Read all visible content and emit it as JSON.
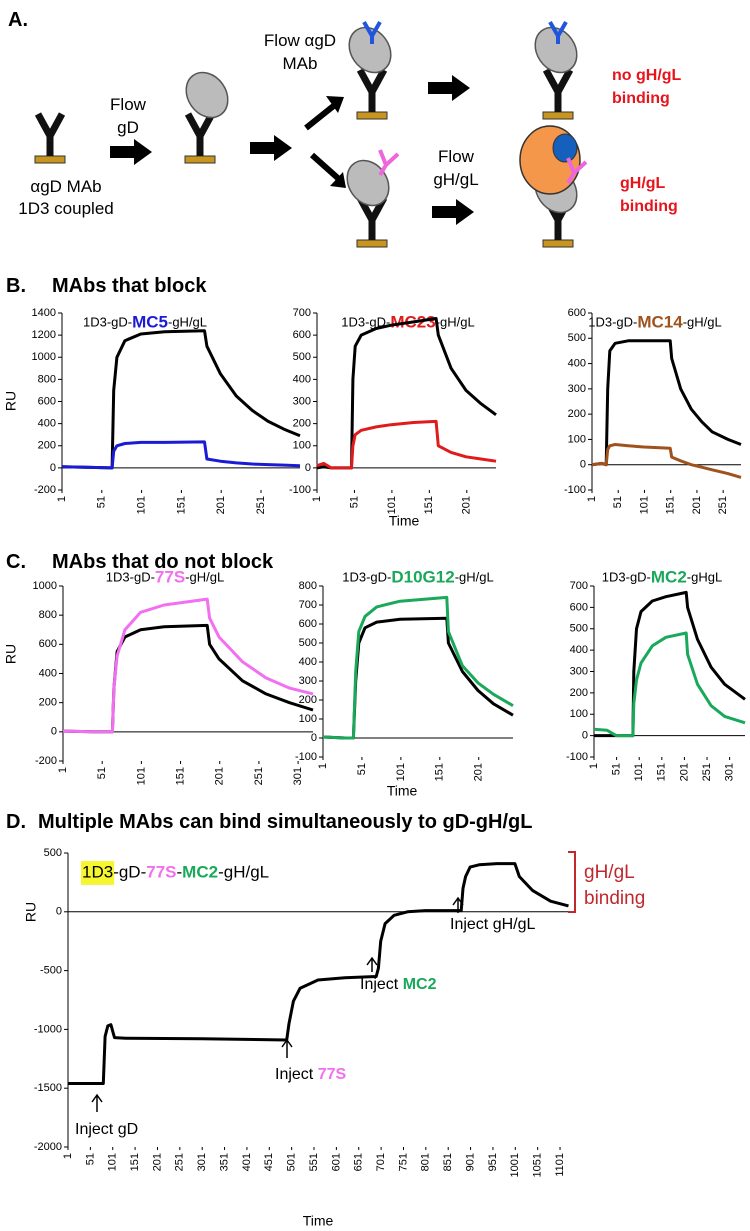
{
  "diagram": {
    "label": "A.",
    "flow_gd": [
      "Flow",
      "gD"
    ],
    "flow_mab": [
      "Flow αgD",
      "MAb"
    ],
    "coupled": [
      "αgD MAb",
      "1D3 coupled"
    ],
    "flow_ghgl": [
      "Flow",
      "gH/gL"
    ],
    "no_binding": [
      "no gH/gL",
      "binding"
    ],
    "binding": [
      "gH/gL",
      "binding"
    ]
  },
  "sections": [
    {
      "label": "B.",
      "title": "MAbs that block"
    },
    {
      "label": "C.",
      "title": "MAbs that do not block"
    },
    {
      "label": "D.",
      "title": "Multiple MAbs can bind simultaneously to gD-gH/gL"
    }
  ],
  "chart_data": [
    {
      "type": "line",
      "title": [
        {
          "text": "1D3-gD-"
        },
        {
          "text": "MC5",
          "color": "#1b1bd6"
        },
        {
          "text": "-gH/gL"
        }
      ],
      "ylabel": "RU",
      "x": [
        1,
        30,
        64,
        66,
        70,
        80,
        100,
        130,
        180,
        183,
        200,
        220,
        240,
        260,
        280,
        300
      ],
      "series": [
        {
          "color": "#000000",
          "values": [
            10,
            5,
            0,
            700,
            1000,
            1150,
            1210,
            1230,
            1240,
            1100,
            850,
            650,
            520,
            420,
            350,
            290
          ]
        },
        {
          "color": "#1b1bd6",
          "values": [
            10,
            5,
            0,
            150,
            200,
            220,
            230,
            230,
            235,
            80,
            60,
            45,
            35,
            30,
            25,
            20
          ]
        }
      ],
      "xlim": [
        1,
        300
      ],
      "xticks": [
        1,
        51,
        101,
        151,
        201,
        251
      ],
      "ylim": [
        -200,
        1400
      ],
      "yticks": [
        -200,
        0,
        200,
        400,
        600,
        800,
        1000,
        1200,
        1400
      ]
    },
    {
      "type": "line",
      "title": [
        {
          "text": "1D3-gD-"
        },
        {
          "text": "MC23",
          "color": "#e01b1b"
        },
        {
          "text": "-gH/gL"
        }
      ],
      "xlabel": "Time",
      "x": [
        1,
        10,
        20,
        47,
        49,
        52,
        60,
        80,
        100,
        130,
        160,
        163,
        180,
        200,
        220,
        240
      ],
      "series": [
        {
          "color": "#000000",
          "values": [
            0,
            5,
            0,
            0,
            400,
            550,
            600,
            630,
            645,
            660,
            675,
            600,
            450,
            350,
            290,
            240
          ]
        },
        {
          "color": "#e01b1b",
          "values": [
            10,
            20,
            0,
            0,
            100,
            150,
            170,
            185,
            195,
            205,
            210,
            100,
            70,
            50,
            40,
            30
          ]
        }
      ],
      "xlim": [
        1,
        240
      ],
      "xticks": [
        1,
        51,
        101,
        151,
        201
      ],
      "ylim": [
        -100,
        700
      ],
      "yticks": [
        -100,
        0,
        100,
        200,
        300,
        400,
        500,
        600,
        700
      ]
    },
    {
      "type": "line",
      "title": [
        {
          "text": "1D3-gD-"
        },
        {
          "text": "MC14",
          "color": "#a0521c"
        },
        {
          "text": "-gH/gL"
        }
      ],
      "x": [
        1,
        20,
        28,
        31,
        35,
        45,
        70,
        100,
        150,
        153,
        170,
        190,
        210,
        230,
        260,
        285
      ],
      "series": [
        {
          "color": "#000000",
          "values": [
            0,
            5,
            0,
            300,
            450,
            480,
            490,
            490,
            490,
            420,
            300,
            220,
            170,
            130,
            100,
            80
          ]
        },
        {
          "color": "#a0521c",
          "values": [
            0,
            5,
            0,
            60,
            75,
            80,
            75,
            70,
            65,
            30,
            15,
            0,
            -10,
            -20,
            -35,
            -50
          ]
        }
      ],
      "xlim": [
        1,
        285
      ],
      "xticks": [
        1,
        51,
        101,
        151,
        201,
        251
      ],
      "ylim": [
        -100,
        600
      ],
      "yticks": [
        -100,
        0,
        100,
        200,
        300,
        400,
        500,
        600
      ]
    },
    {
      "type": "line",
      "title": [
        {
          "text": "1D3-gD-"
        },
        {
          "text": "77S",
          "color": "#f26ff0"
        },
        {
          "text": "-gH/gL"
        }
      ],
      "ylabel": "RU",
      "x": [
        1,
        40,
        64,
        66,
        70,
        80,
        100,
        130,
        185,
        188,
        200,
        230,
        260,
        290,
        320
      ],
      "series": [
        {
          "color": "#000000",
          "values": [
            5,
            0,
            0,
            300,
            550,
            650,
            700,
            720,
            730,
            600,
            500,
            350,
            260,
            200,
            150
          ]
        },
        {
          "color": "#f26ff0",
          "values": [
            5,
            0,
            0,
            300,
            520,
            700,
            820,
            870,
            910,
            780,
            650,
            480,
            370,
            300,
            260
          ]
        }
      ],
      "xlim": [
        1,
        320
      ],
      "xticks": [
        1,
        51,
        101,
        151,
        201,
        251,
        301
      ],
      "ylim": [
        -200,
        1000
      ],
      "yticks": [
        -200,
        0,
        200,
        400,
        600,
        800,
        1000
      ]
    },
    {
      "type": "line",
      "title": [
        {
          "text": "1D3-gD-"
        },
        {
          "text": "D10G12",
          "color": "#1aa85a"
        },
        {
          "text": "-gH/gL"
        }
      ],
      "xlabel": "Time",
      "x": [
        1,
        30,
        40,
        43,
        47,
        55,
        70,
        100,
        160,
        162,
        180,
        200,
        220,
        245
      ],
      "series": [
        {
          "color": "#000000",
          "values": [
            5,
            0,
            0,
            300,
            500,
            580,
            610,
            625,
            630,
            500,
            350,
            250,
            180,
            120
          ]
        },
        {
          "color": "#1aa85a",
          "values": [
            5,
            0,
            0,
            350,
            560,
            640,
            690,
            720,
            740,
            560,
            380,
            290,
            230,
            170
          ]
        }
      ],
      "xlim": [
        1,
        245
      ],
      "xticks": [
        1,
        51,
        101,
        151,
        201
      ],
      "ylim": [
        -100,
        800
      ],
      "yticks": [
        -100,
        0,
        100,
        200,
        300,
        400,
        500,
        600,
        700,
        800
      ]
    },
    {
      "type": "line",
      "title": [
        {
          "text": "1D3-gD-"
        },
        {
          "text": "MC2",
          "color": "#1aa85a"
        },
        {
          "text": "-gHgL"
        }
      ],
      "x": [
        1,
        30,
        50,
        87,
        89,
        95,
        105,
        130,
        160,
        205,
        208,
        230,
        260,
        290,
        335
      ],
      "series": [
        {
          "color": "#000000",
          "values": [
            0,
            0,
            0,
            0,
            300,
            500,
            580,
            630,
            650,
            670,
            600,
            450,
            320,
            240,
            170
          ]
        },
        {
          "color": "#1aa85a",
          "values": [
            30,
            25,
            0,
            0,
            150,
            260,
            340,
            420,
            460,
            480,
            380,
            240,
            140,
            90,
            60
          ]
        }
      ],
      "xlim": [
        1,
        335
      ],
      "xticks": [
        1,
        51,
        101,
        151,
        201,
        251,
        301
      ],
      "ylim": [
        -100,
        700
      ],
      "yticks": [
        -100,
        0,
        100,
        200,
        300,
        400,
        500,
        600,
        700
      ]
    },
    {
      "type": "line",
      "title": [
        {
          "text": "1D3",
          "background": "#f5f530"
        },
        {
          "text": "-gD-"
        },
        {
          "text": "77S",
          "color": "#f26ff0"
        },
        {
          "text": "-"
        },
        {
          "text": "MC2",
          "color": "#1aa85a"
        },
        {
          "text": "-gH/gL"
        }
      ],
      "ylabel": "RU",
      "xlabel": "Time",
      "x": [
        1,
        80,
        84,
        90,
        97,
        105,
        130,
        300,
        490,
        495,
        505,
        520,
        560,
        620,
        690,
        695,
        700,
        710,
        730,
        760,
        800,
        880,
        884,
        890,
        900,
        920,
        960,
        1000,
        1010,
        1040,
        1080,
        1120
      ],
      "series": [
        {
          "color": "#000000",
          "values": [
            -1460,
            -1460,
            -1060,
            -970,
            -960,
            -1070,
            -1075,
            -1080,
            -1090,
            -950,
            -760,
            -650,
            -580,
            -560,
            -550,
            -480,
            -250,
            -100,
            -30,
            0,
            10,
            10,
            200,
            300,
            380,
            400,
            410,
            410,
            300,
            180,
            90,
            50
          ]
        }
      ],
      "xlim": [
        1,
        1130
      ],
      "xticks": [
        1,
        51,
        101,
        151,
        201,
        251,
        301,
        351,
        401,
        451,
        501,
        551,
        601,
        651,
        701,
        751,
        801,
        851,
        901,
        951,
        1001,
        1051,
        1101
      ],
      "ylim": [
        -2000,
        500
      ],
      "yticks": [
        -2000,
        -1500,
        -1000,
        -500,
        0,
        500
      ],
      "annotations": [
        [
          {
            "text": "Inject gD"
          }
        ],
        [
          {
            "text": "Inject "
          },
          {
            "text": "77S",
            "color": "#f26ff0"
          }
        ],
        [
          {
            "text": "Inject "
          },
          {
            "text": "MC2",
            "color": "#1aa85a"
          }
        ],
        [
          {
            "text": "Inject gH/gL"
          }
        ]
      ],
      "bracket": {
        "label": [
          "gH/gL",
          "binding"
        ],
        "color": "#c0282d"
      }
    }
  ]
}
